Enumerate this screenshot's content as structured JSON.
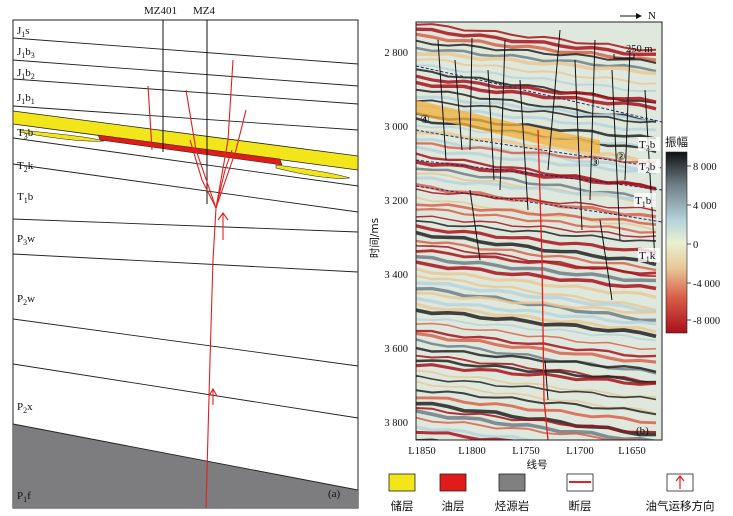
{
  "panel_a": {
    "wells": [
      "MZ401",
      "MZ4"
    ],
    "layers": [
      {
        "text": "J1s",
        "base": "J",
        "subs": [
          {
            "t": "1",
            "after": 1
          }
        ]
      },
      {
        "text": "J1b3",
        "base": "J",
        "subs": []
      },
      {
        "text": "J1b2",
        "base": "J",
        "subs": []
      },
      {
        "text": "J1b1",
        "base": "J",
        "subs": []
      },
      {
        "text": "T3b",
        "base": "T",
        "subs": []
      },
      {
        "text": "T2k",
        "base": "T",
        "subs": []
      },
      {
        "text": "T1b",
        "base": "T",
        "subs": []
      },
      {
        "text": "P3w",
        "base": "P",
        "subs": []
      },
      {
        "text": "P2w",
        "base": "P",
        "subs": []
      },
      {
        "text": "P2x",
        "base": "P",
        "subs": []
      },
      {
        "text": "P1f",
        "base": "P",
        "subs": []
      }
    ],
    "panel_label": "(a)"
  },
  "panel_b": {
    "north": "N",
    "scale_label": "250 m",
    "y_axis_title": "时间/ms",
    "y_ticks": [
      "2 800",
      "3 000",
      "3 200",
      "3 400",
      "3 600",
      "3 800"
    ],
    "x_axis_title": "线号",
    "x_ticks": [
      "L1850",
      "L1800",
      "L1750",
      "L1700",
      "L1650"
    ],
    "horizon_labels": [
      "T3b",
      "T2b",
      "T1b",
      "T1k"
    ],
    "markers": [
      "①",
      "②",
      "③",
      "④"
    ],
    "colorbar_title": "振幅",
    "colorbar_ticks": [
      "8 000",
      "4 000",
      "0",
      "-4 000",
      "-8 000"
    ],
    "panel_label": "(b)"
  },
  "legend": [
    {
      "label": "储层",
      "color": "#f2e61a"
    },
    {
      "label": "油层",
      "color": "#e11a1a"
    },
    {
      "label": "烃源岩",
      "color": "#808080"
    },
    {
      "label": "断层",
      "color": "#e02020"
    },
    {
      "label": "油气运移方向",
      "color": "#e02020"
    }
  ]
}
